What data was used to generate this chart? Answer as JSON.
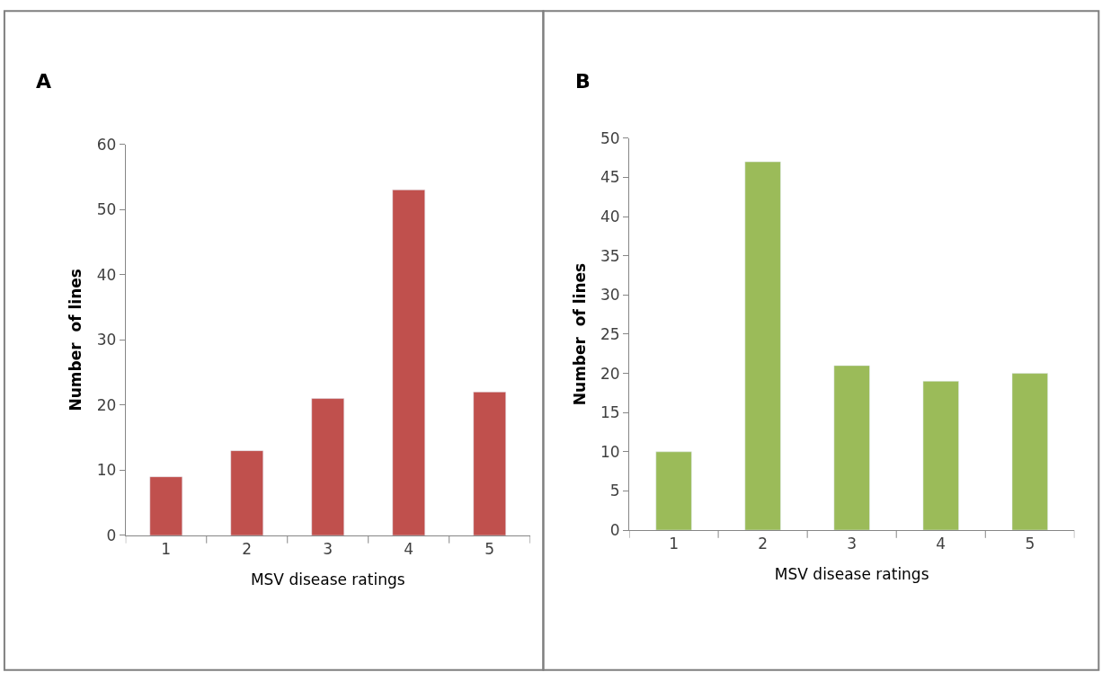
{
  "chart_data": [
    {
      "type": "bar",
      "title": "A",
      "xlabel": "MSV disease ratings",
      "ylabel": "Number  of lines",
      "categories": [
        "1",
        "2",
        "3",
        "4",
        "5"
      ],
      "series": [
        {
          "color": "#c0504d",
          "values": [
            9,
            13,
            21,
            53,
            22
          ]
        }
      ],
      "ylim": [
        0,
        60
      ],
      "yticks": [
        0,
        10,
        20,
        30,
        40,
        50,
        60
      ]
    },
    {
      "type": "bar",
      "title": "B",
      "xlabel": "MSV disease ratings",
      "ylabel": "Number  of lines",
      "categories": [
        "1",
        "2",
        "3",
        "4",
        "5"
      ],
      "series": [
        {
          "color": "#9bbb59",
          "values": [
            10,
            47,
            21,
            19,
            20
          ]
        }
      ],
      "ylim": [
        0,
        50
      ],
      "yticks": [
        0,
        5,
        10,
        15,
        20,
        25,
        30,
        35,
        40,
        45,
        50
      ]
    }
  ]
}
